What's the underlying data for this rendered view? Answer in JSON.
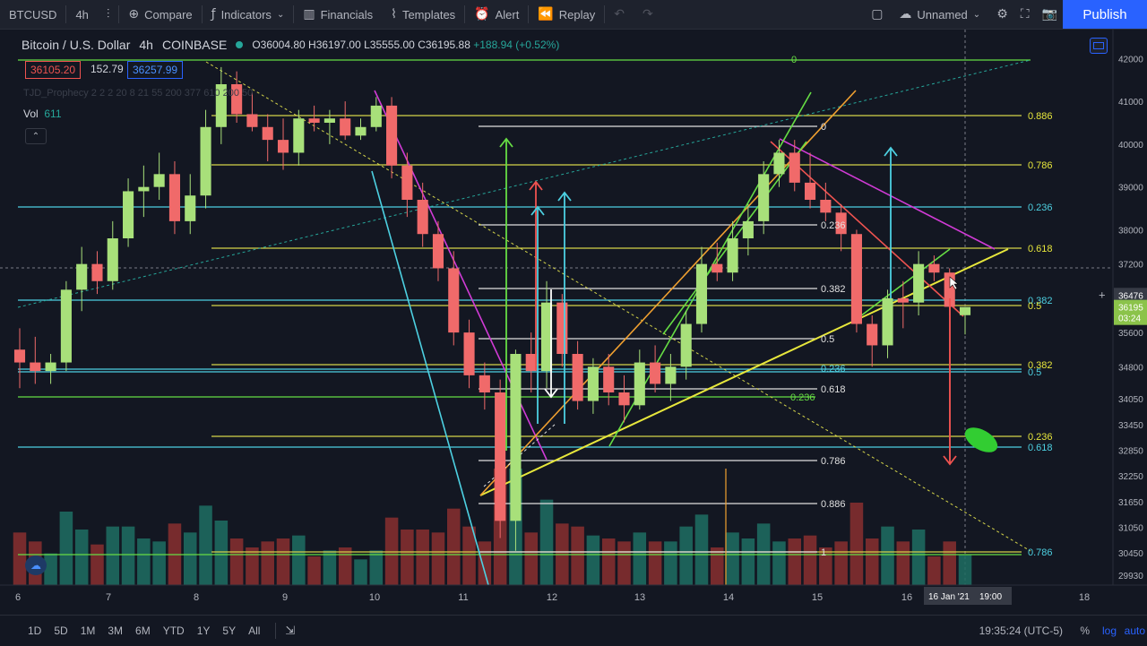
{
  "toolbar": {
    "symbol": "BTCUSD",
    "interval": "4h",
    "compare": "Compare",
    "indicators": "Indicators",
    "financials": "Financials",
    "templates": "Templates",
    "alert": "Alert",
    "replay": "Replay",
    "layout_name": "Unnamed",
    "publish": "Publish"
  },
  "legend": {
    "title": "Bitcoin / U.S. Dollar",
    "interval": "4h",
    "exchange": "COINBASE",
    "open": "O36004.80",
    "high": "H36197.00",
    "low": "L35555.00",
    "close": "C36195.88",
    "change": "+188.94 (+0.52%)",
    "bid": "36105.20",
    "spread": "152.79",
    "ask": "36257.99",
    "indicator": "TJD_Prophecy 2 2 2 20 8 21 55 200 377 610 200 50",
    "volume_label": "Vol",
    "volume_value": "611"
  },
  "colors": {
    "up": "#26a69a",
    "down": "#ef5350",
    "accent": "#2962ff",
    "yellow": "#e7e73c",
    "cyan": "#4dd0e1",
    "green": "#66dd44",
    "magenta": "#d13bd6",
    "orange": "#f0a030"
  },
  "price_axis": [
    "42000",
    "41000",
    "40000",
    "39000",
    "38000",
    "37200",
    "36476",
    "36195",
    "35600",
    "34800",
    "34050",
    "33450",
    "32850",
    "32250",
    "31650",
    "31050",
    "30450",
    "29930"
  ],
  "price_tags": {
    "crosshair": "36476",
    "last": "36195",
    "countdown": "03:24"
  },
  "time_axis": [
    "6",
    "7",
    "8",
    "9",
    "10",
    "11",
    "12",
    "13",
    "14",
    "15",
    "16",
    "18"
  ],
  "time_axis_current": "16 Jan '21",
  "time_axis_time": "19:00",
  "fib_labels": {
    "right_top": "0",
    "right": [
      "0.886",
      "0.786",
      "0.236",
      "0.618",
      "0.382",
      "0.5",
      "0.382",
      "0.5",
      "0.236",
      "0.618",
      "0.786"
    ],
    "mid": [
      "0",
      "0.236",
      "0.382",
      "0.5",
      "0.618",
      "0.786",
      "0.886",
      "1"
    ],
    "mid_cyan": [
      "0.236"
    ],
    "mid_green": [
      "0.236"
    ]
  },
  "bottom": {
    "ranges": [
      "1D",
      "5D",
      "1M",
      "3M",
      "6M",
      "YTD",
      "1Y",
      "5Y",
      "All"
    ],
    "clock": "19:35:24 (UTC-5)",
    "percent": "%",
    "log": "log",
    "auto": "auto"
  },
  "chart_data": {
    "type": "candlestick",
    "symbol": "BTCUSD",
    "interval": "4h",
    "ylim": [
      29700,
      42300
    ],
    "candles_4h": [
      {
        "o": 35200,
        "h": 35700,
        "l": 34300,
        "c": 34900
      },
      {
        "o": 34900,
        "h": 35500,
        "l": 34400,
        "c": 34700
      },
      {
        "o": 34700,
        "h": 35100,
        "l": 34400,
        "c": 34900
      },
      {
        "o": 34900,
        "h": 36800,
        "l": 34700,
        "c": 36600
      },
      {
        "o": 36600,
        "h": 37600,
        "l": 36100,
        "c": 37200
      },
      {
        "o": 37200,
        "h": 37500,
        "l": 36500,
        "c": 36800
      },
      {
        "o": 36800,
        "h": 38200,
        "l": 36600,
        "c": 37800
      },
      {
        "o": 37800,
        "h": 39200,
        "l": 37600,
        "c": 38900
      },
      {
        "o": 38900,
        "h": 39500,
        "l": 38300,
        "c": 39000
      },
      {
        "o": 39000,
        "h": 39800,
        "l": 38700,
        "c": 39300
      },
      {
        "o": 39300,
        "h": 39600,
        "l": 37900,
        "c": 38200
      },
      {
        "o": 38200,
        "h": 39300,
        "l": 37900,
        "c": 38800
      },
      {
        "o": 38800,
        "h": 40800,
        "l": 38500,
        "c": 40400
      },
      {
        "o": 40400,
        "h": 41800,
        "l": 40000,
        "c": 41400
      },
      {
        "o": 41400,
        "h": 41700,
        "l": 40500,
        "c": 40700
      },
      {
        "o": 40700,
        "h": 41200,
        "l": 40300,
        "c": 40400
      },
      {
        "o": 40400,
        "h": 40700,
        "l": 39600,
        "c": 40100
      },
      {
        "o": 40100,
        "h": 40600,
        "l": 39400,
        "c": 39800
      },
      {
        "o": 39800,
        "h": 40800,
        "l": 39500,
        "c": 40600
      },
      {
        "o": 40600,
        "h": 40900,
        "l": 40300,
        "c": 40500
      },
      {
        "o": 40500,
        "h": 40800,
        "l": 40000,
        "c": 40600
      },
      {
        "o": 40600,
        "h": 41000,
        "l": 40100,
        "c": 40200
      },
      {
        "o": 40200,
        "h": 40600,
        "l": 40100,
        "c": 40400
      },
      {
        "o": 40400,
        "h": 41100,
        "l": 40300,
        "c": 40900
      },
      {
        "o": 40900,
        "h": 41100,
        "l": 39200,
        "c": 39500
      },
      {
        "o": 39500,
        "h": 39800,
        "l": 38300,
        "c": 38700
      },
      {
        "o": 38700,
        "h": 39100,
        "l": 37600,
        "c": 37900
      },
      {
        "o": 37900,
        "h": 38200,
        "l": 36800,
        "c": 37100
      },
      {
        "o": 37100,
        "h": 37500,
        "l": 35300,
        "c": 35600
      },
      {
        "o": 35600,
        "h": 35900,
        "l": 34300,
        "c": 34600
      },
      {
        "o": 34600,
        "h": 34900,
        "l": 33800,
        "c": 34200
      },
      {
        "o": 34200,
        "h": 34500,
        "l": 30800,
        "c": 31200
      },
      {
        "o": 31200,
        "h": 35200,
        "l": 30500,
        "c": 35100
      },
      {
        "o": 35100,
        "h": 35600,
        "l": 34200,
        "c": 34700
      },
      {
        "o": 34700,
        "h": 36800,
        "l": 34300,
        "c": 36300
      },
      {
        "o": 36300,
        "h": 36500,
        "l": 34800,
        "c": 35100
      },
      {
        "o": 35100,
        "h": 35400,
        "l": 33800,
        "c": 34000
      },
      {
        "o": 34000,
        "h": 35000,
        "l": 33700,
        "c": 34800
      },
      {
        "o": 34800,
        "h": 35100,
        "l": 33900,
        "c": 34200
      },
      {
        "o": 34200,
        "h": 34600,
        "l": 33500,
        "c": 33900
      },
      {
        "o": 33900,
        "h": 35200,
        "l": 33800,
        "c": 34900
      },
      {
        "o": 34900,
        "h": 35300,
        "l": 34200,
        "c": 34400
      },
      {
        "o": 34400,
        "h": 35100,
        "l": 34000,
        "c": 34800
      },
      {
        "o": 34800,
        "h": 36100,
        "l": 34500,
        "c": 35800
      },
      {
        "o": 35800,
        "h": 37600,
        "l": 35600,
        "c": 37200
      },
      {
        "o": 37200,
        "h": 37700,
        "l": 36800,
        "c": 37000
      },
      {
        "o": 37000,
        "h": 38200,
        "l": 36800,
        "c": 37800
      },
      {
        "o": 37800,
        "h": 38600,
        "l": 37400,
        "c": 38200
      },
      {
        "o": 38200,
        "h": 39600,
        "l": 37900,
        "c": 39300
      },
      {
        "o": 39300,
        "h": 40100,
        "l": 39000,
        "c": 39800
      },
      {
        "o": 39800,
        "h": 40100,
        "l": 38900,
        "c": 39100
      },
      {
        "o": 39100,
        "h": 39800,
        "l": 38500,
        "c": 38700
      },
      {
        "o": 38700,
        "h": 39100,
        "l": 38200,
        "c": 38400
      },
      {
        "o": 38400,
        "h": 38600,
        "l": 37500,
        "c": 37900
      },
      {
        "o": 37900,
        "h": 38000,
        "l": 35600,
        "c": 35800
      },
      {
        "o": 35800,
        "h": 36000,
        "l": 34800,
        "c": 35300
      },
      {
        "o": 35300,
        "h": 36600,
        "l": 35000,
        "c": 36400
      },
      {
        "o": 36400,
        "h": 36800,
        "l": 35700,
        "c": 36300
      },
      {
        "o": 36300,
        "h": 37500,
        "l": 36000,
        "c": 37200
      },
      {
        "o": 37200,
        "h": 37400,
        "l": 36800,
        "c": 37000
      },
      {
        "o": 37000,
        "h": 37100,
        "l": 36000,
        "c": 36200
      },
      {
        "o": 36004.8,
        "h": 36197,
        "l": 35555,
        "c": 36195.88
      }
    ],
    "volume_shown": true
  }
}
